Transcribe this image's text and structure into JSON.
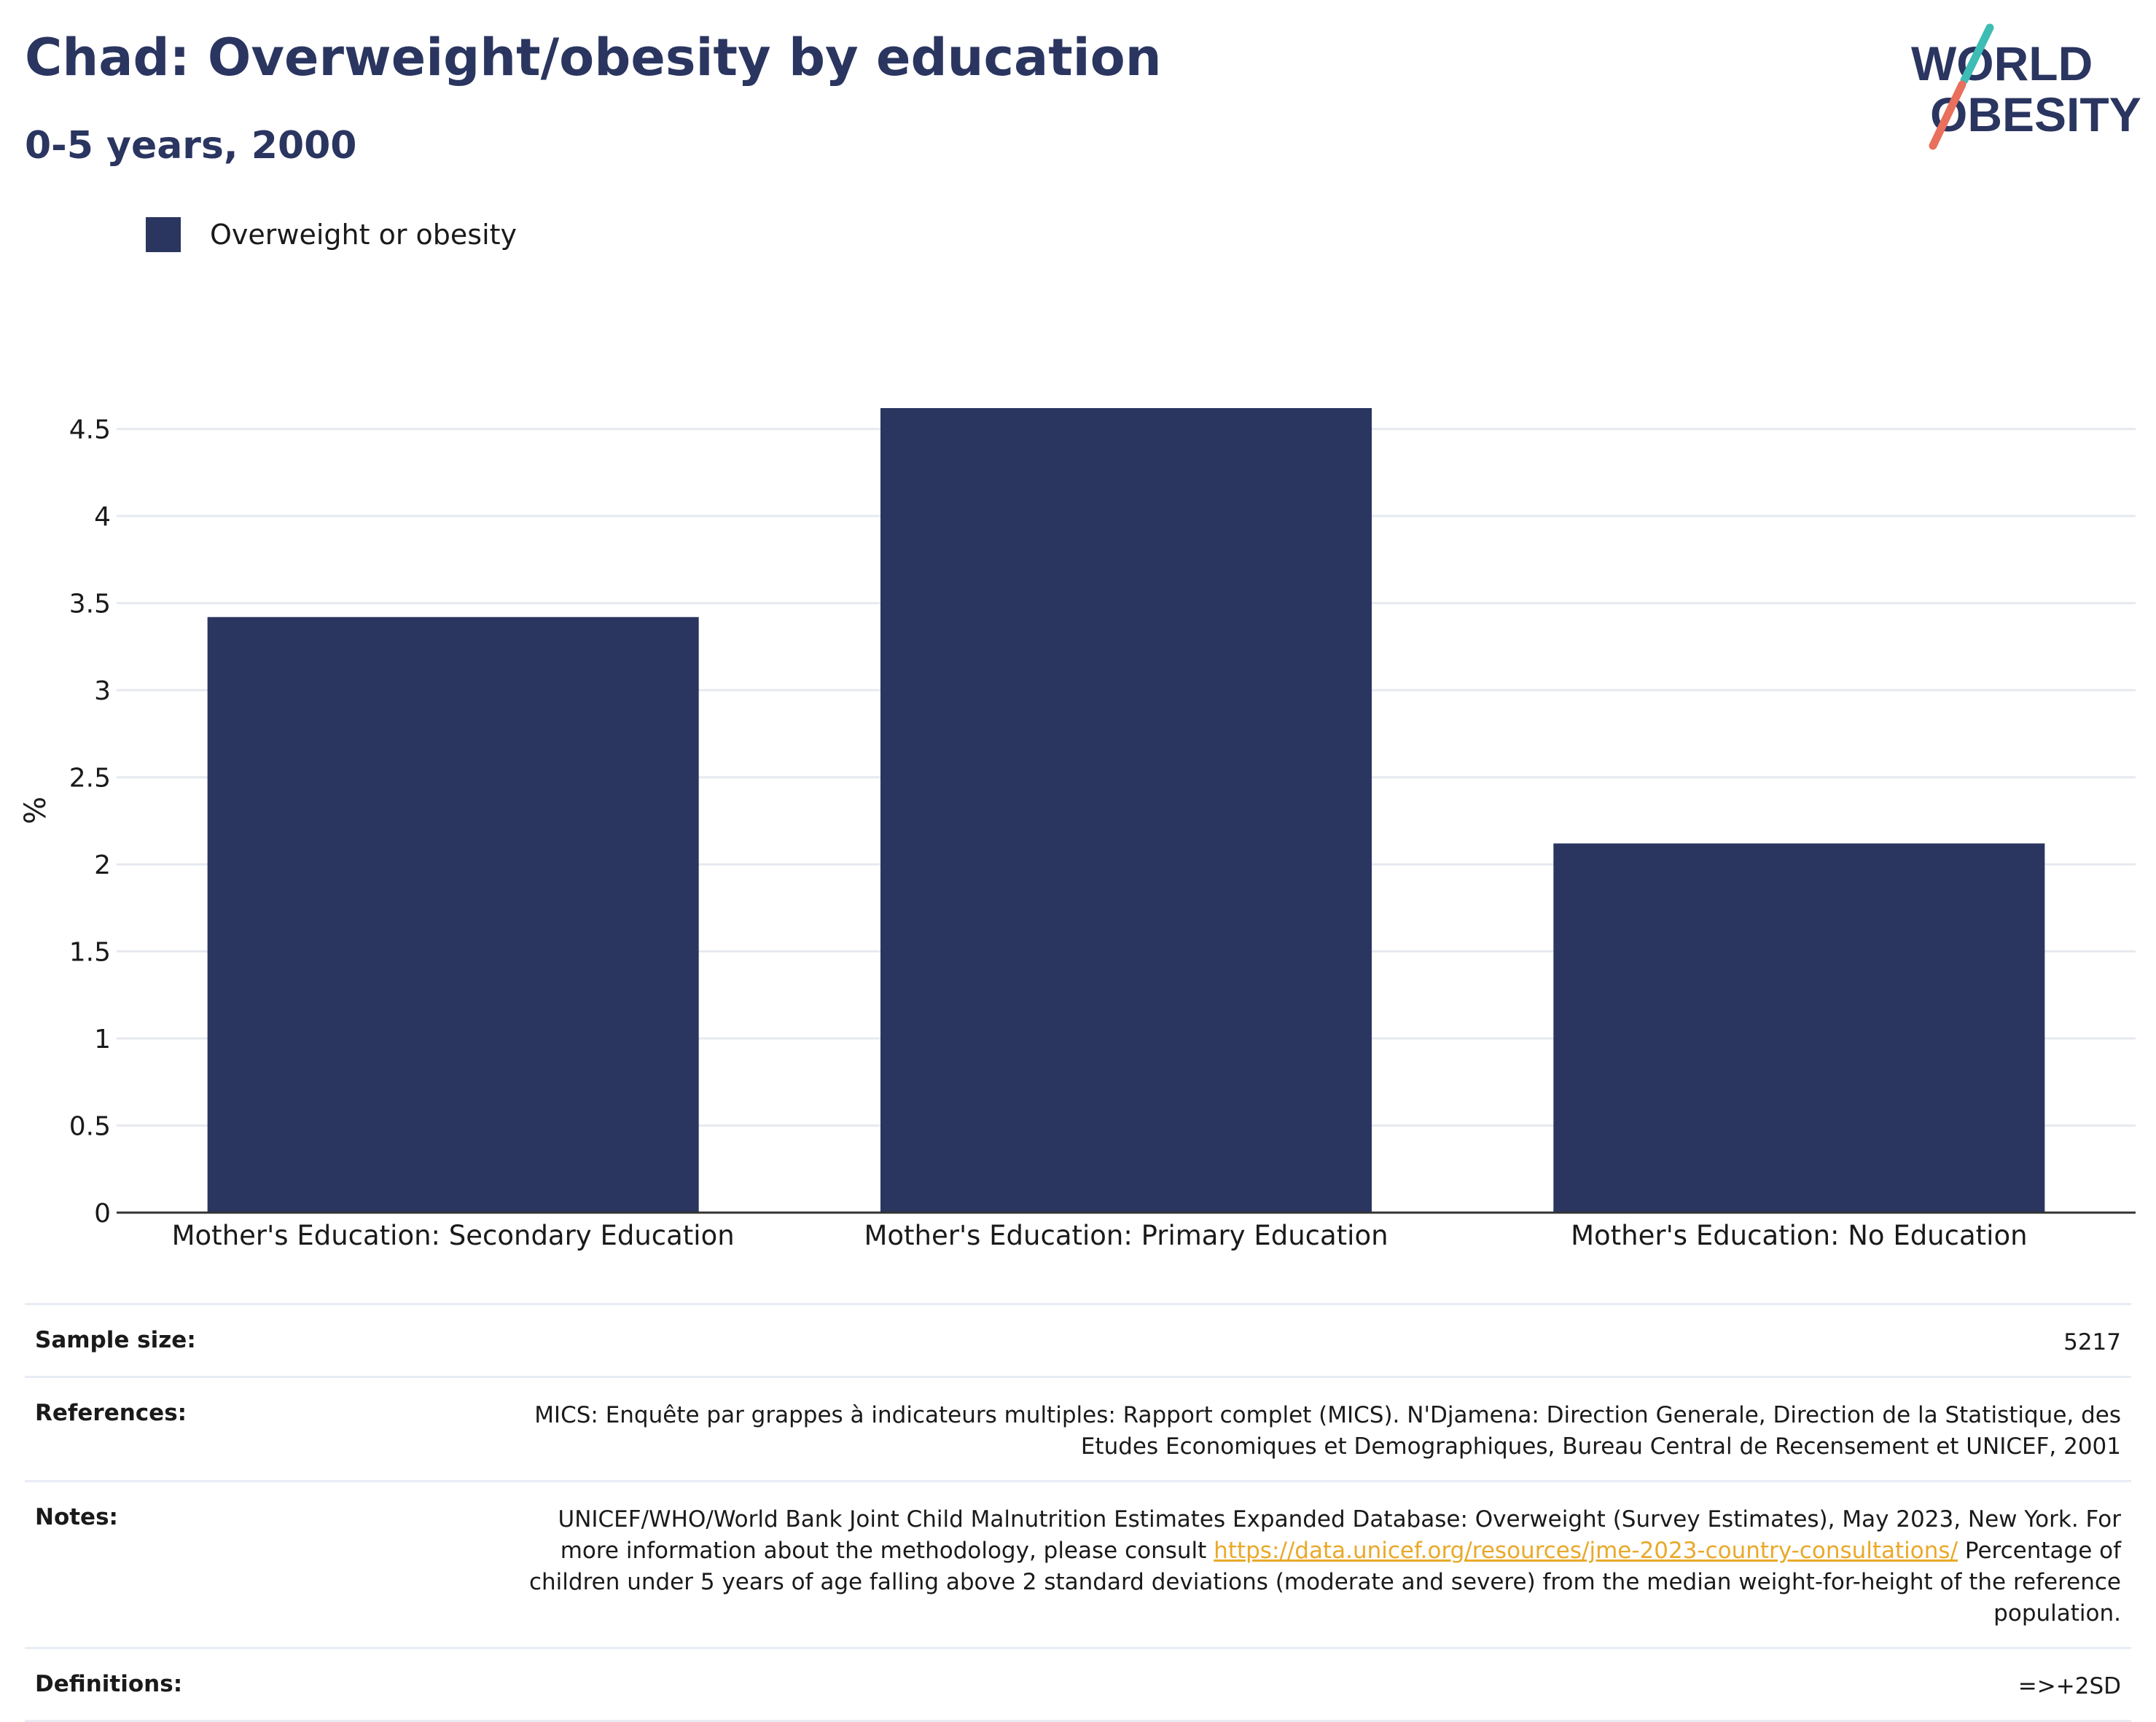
{
  "title": "Chad: Overweight/obesity by education",
  "subtitle": "0-5 years, 2000",
  "logo": {
    "line1": "WORLD",
    "line2": "OBESITY",
    "colors": {
      "text": "#2a3560",
      "slash_teal": "#3dbdb4",
      "slash_coral": "#e8705c"
    }
  },
  "colors": {
    "bar": "#2a3660",
    "grid": "#e6e9ef",
    "axis": "#333333"
  },
  "chart_data": {
    "type": "bar",
    "title": "Chad: Overweight/obesity by education",
    "subtitle": "0-5 years, 2000",
    "xlabel": "",
    "ylabel": "%",
    "ylim": [
      0,
      4.62
    ],
    "yticks": [
      0,
      0.5,
      1,
      1.5,
      2,
      2.5,
      3,
      3.5,
      4,
      4.5
    ],
    "ytick_labels": [
      "0",
      "0.5",
      "1",
      "1.5",
      "2",
      "2.5",
      "3",
      "3.5",
      "4",
      "4.5"
    ],
    "grid": true,
    "legend_position": "top-left",
    "categories": [
      "Mother's Education: Secondary Education",
      "Mother's Education: Primary Education",
      "Mother's Education: No Education"
    ],
    "series": [
      {
        "name": "Overweight or obesity",
        "color": "#2a3660",
        "values": [
          3.42,
          4.62,
          2.12
        ]
      }
    ]
  },
  "info": {
    "sample_size": {
      "label": "Sample size:",
      "value": "5217"
    },
    "references": {
      "label": "References:",
      "value": "MICS: Enquête par grappes à indicateurs multiples: Rapport complet (MICS). N'Djamena: Direction Generale, Direction de la Statistique, des Etudes Economiques et Demographiques, Bureau Central de Recensement et UNICEF, 2001"
    },
    "notes": {
      "label": "Notes:",
      "text_before": "UNICEF/WHO/World Bank Joint Child Malnutrition Estimates Expanded Database: Overweight (Survey Estimates), May 2023, New York. For more information about the methodology, please consult ",
      "link": "https://data.unicef.org/resources/jme-2023-country-consultations/",
      "text_after": " Percentage of children under 5 years of age falling above 2 standard deviations (moderate and severe) from the median weight-for-height of the reference population."
    },
    "definitions": {
      "label": "Definitions:",
      "value": "=>+2SD"
    }
  }
}
